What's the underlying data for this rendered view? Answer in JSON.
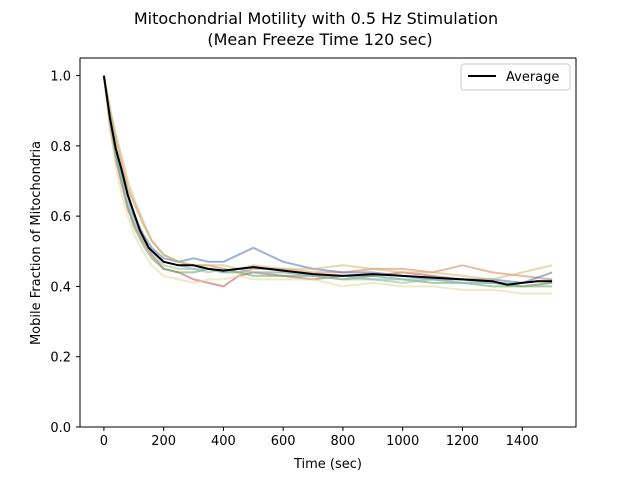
{
  "chart_data": {
    "type": "line",
    "title": "Mitochondrial Motility with 0.5 Hz Stimulation",
    "subtitle": "(Mean Freeze Time 120 sec)",
    "xlabel": "Time (sec)",
    "ylabel": "Mobile Fraction of Mitochondria",
    "xlim": [
      -80,
      1580
    ],
    "ylim": [
      0,
      1.05
    ],
    "xticks": [
      "0",
      "200",
      "400",
      "600",
      "800",
      "1000",
      "1200",
      "1400"
    ],
    "yticks": [
      "0.0",
      "0.2",
      "0.4",
      "0.6",
      "0.8",
      "1.0"
    ],
    "grid": false,
    "legend": {
      "position": "top-right",
      "entries": [
        "Average"
      ]
    },
    "series": [
      {
        "name": "Average",
        "color": "#000000",
        "x": [
          0,
          20,
          40,
          60,
          80,
          100,
          120,
          150,
          200,
          250,
          300,
          350,
          400,
          450,
          500,
          600,
          700,
          800,
          900,
          1000,
          1100,
          1200,
          1300,
          1350,
          1400,
          1450,
          1500
        ],
        "y": [
          1.0,
          0.88,
          0.79,
          0.73,
          0.66,
          0.61,
          0.56,
          0.51,
          0.47,
          0.46,
          0.46,
          0.45,
          0.445,
          0.45,
          0.455,
          0.445,
          0.435,
          0.43,
          0.435,
          0.43,
          0.425,
          0.42,
          0.415,
          0.405,
          0.41,
          0.415,
          0.415
        ]
      },
      {
        "color": "#c44e52",
        "x": [
          0,
          20,
          40,
          60,
          80,
          100,
          130,
          160,
          200,
          250,
          300,
          350,
          400,
          450,
          500,
          600,
          700,
          800,
          900,
          1000,
          1100,
          1200,
          1300,
          1400,
          1500
        ],
        "y": [
          1.0,
          0.86,
          0.76,
          0.69,
          0.62,
          0.58,
          0.53,
          0.49,
          0.45,
          0.44,
          0.42,
          0.41,
          0.4,
          0.43,
          0.44,
          0.43,
          0.42,
          0.43,
          0.43,
          0.44,
          0.43,
          0.42,
          0.41,
          0.4,
          0.41
        ]
      },
      {
        "color": "#dd8452",
        "x": [
          0,
          20,
          40,
          60,
          80,
          100,
          130,
          160,
          200,
          250,
          300,
          350,
          400,
          450,
          500,
          600,
          700,
          800,
          900,
          1000,
          1100,
          1200,
          1300,
          1400,
          1500
        ],
        "y": [
          1.0,
          0.9,
          0.82,
          0.75,
          0.68,
          0.64,
          0.58,
          0.53,
          0.49,
          0.47,
          0.46,
          0.46,
          0.45,
          0.44,
          0.45,
          0.45,
          0.44,
          0.44,
          0.45,
          0.45,
          0.44,
          0.46,
          0.44,
          0.43,
          0.42
        ]
      },
      {
        "color": "#4c72b0",
        "x": [
          0,
          20,
          40,
          60,
          80,
          100,
          130,
          160,
          200,
          250,
          300,
          350,
          400,
          450,
          500,
          600,
          700,
          800,
          900,
          1000,
          1100,
          1200,
          1300,
          1400,
          1500
        ],
        "y": [
          1.0,
          0.88,
          0.78,
          0.72,
          0.66,
          0.6,
          0.55,
          0.51,
          0.48,
          0.47,
          0.48,
          0.47,
          0.47,
          0.49,
          0.51,
          0.47,
          0.45,
          0.44,
          0.44,
          0.43,
          0.42,
          0.42,
          0.42,
          0.41,
          0.44
        ]
      },
      {
        "color": "#55a868",
        "x": [
          0,
          20,
          40,
          60,
          80,
          100,
          130,
          160,
          200,
          250,
          300,
          350,
          400,
          450,
          500,
          600,
          700,
          800,
          900,
          1000,
          1100,
          1200,
          1300,
          1400,
          1500
        ],
        "y": [
          1.0,
          0.87,
          0.77,
          0.7,
          0.63,
          0.57,
          0.52,
          0.48,
          0.45,
          0.44,
          0.44,
          0.45,
          0.44,
          0.44,
          0.43,
          0.43,
          0.43,
          0.42,
          0.43,
          0.42,
          0.41,
          0.41,
          0.4,
          0.4,
          0.4
        ]
      },
      {
        "color": "#ccb974",
        "x": [
          0,
          20,
          40,
          60,
          80,
          100,
          130,
          160,
          200,
          250,
          300,
          350,
          400,
          450,
          500,
          600,
          700,
          800,
          900,
          1000,
          1100,
          1200,
          1300,
          1400,
          1500
        ],
        "y": [
          1.0,
          0.91,
          0.83,
          0.77,
          0.7,
          0.65,
          0.59,
          0.53,
          0.49,
          0.47,
          0.46,
          0.46,
          0.46,
          0.45,
          0.46,
          0.45,
          0.45,
          0.46,
          0.45,
          0.44,
          0.44,
          0.43,
          0.42,
          0.44,
          0.46
        ]
      },
      {
        "color": "#8fbc8f",
        "x": [
          0,
          20,
          40,
          60,
          80,
          100,
          130,
          160,
          200,
          250,
          300,
          350,
          400,
          450,
          500,
          600,
          700,
          800,
          900,
          1000,
          1100,
          1200,
          1300,
          1400,
          1500
        ],
        "y": [
          1.0,
          0.89,
          0.8,
          0.73,
          0.67,
          0.61,
          0.55,
          0.5,
          0.46,
          0.45,
          0.45,
          0.44,
          0.45,
          0.44,
          0.44,
          0.44,
          0.43,
          0.42,
          0.42,
          0.41,
          0.42,
          0.41,
          0.41,
          0.4,
          0.41
        ]
      },
      {
        "color": "#e0d89a",
        "x": [
          0,
          20,
          40,
          60,
          80,
          100,
          130,
          160,
          200,
          250,
          300,
          350,
          400,
          450,
          500,
          600,
          700,
          800,
          900,
          1000,
          1100,
          1200,
          1300,
          1400,
          1500
        ],
        "y": [
          1.0,
          0.85,
          0.74,
          0.66,
          0.6,
          0.55,
          0.5,
          0.46,
          0.43,
          0.42,
          0.41,
          0.42,
          0.42,
          0.43,
          0.42,
          0.42,
          0.42,
          0.4,
          0.41,
          0.4,
          0.4,
          0.39,
          0.39,
          0.38,
          0.38
        ]
      },
      {
        "color": "#8ab6c9",
        "x": [
          0,
          20,
          40,
          60,
          80,
          100,
          130,
          160,
          200,
          250,
          300,
          350,
          400,
          450,
          500,
          600,
          700,
          800,
          900,
          1000,
          1100,
          1200,
          1300,
          1400,
          1500
        ],
        "y": [
          1.0,
          0.87,
          0.78,
          0.71,
          0.64,
          0.59,
          0.54,
          0.5,
          0.47,
          0.46,
          0.45,
          0.45,
          0.44,
          0.45,
          0.44,
          0.44,
          0.43,
          0.43,
          0.42,
          0.42,
          0.42,
          0.41,
          0.41,
          0.41,
          0.42
        ]
      }
    ]
  }
}
